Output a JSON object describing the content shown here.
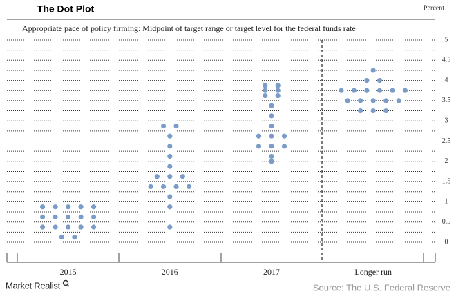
{
  "chart_data": {
    "type": "dot",
    "title": "The Dot Plot",
    "unit_label": "Percent",
    "subtitle": "Appropriate pace of policy firming: Midpoint of target range or target level for the federal funds rate",
    "categories": [
      "2015",
      "2016",
      "2017",
      "Longer run"
    ],
    "dots": [
      [
        0.875,
        0.875,
        0.875,
        0.875,
        0.875,
        0.625,
        0.625,
        0.625,
        0.625,
        0.625,
        0.375,
        0.375,
        0.375,
        0.375,
        0.375,
        0.125,
        0.125
      ],
      [
        2.875,
        2.875,
        2.625,
        2.375,
        2.125,
        1.875,
        1.625,
        1.625,
        1.625,
        1.375,
        1.375,
        1.375,
        1.375,
        1.125,
        0.875,
        0.375
      ],
      [
        3.875,
        3.875,
        3.75,
        3.75,
        3.625,
        3.625,
        3.375,
        3.125,
        2.875,
        2.625,
        2.625,
        2.625,
        2.375,
        2.375,
        2.375,
        2.125,
        2.0
      ],
      [
        4.25,
        4.0,
        4.0,
        3.75,
        3.75,
        3.75,
        3.75,
        3.75,
        3.75,
        3.5,
        3.5,
        3.5,
        3.5,
        3.5,
        3.25,
        3.25,
        3.25
      ]
    ],
    "color": "#7b9cc8",
    "ylim": [
      0,
      5
    ],
    "yticks": [
      0,
      0.5,
      1,
      1.5,
      2,
      2.5,
      3,
      3.5,
      4,
      4.5,
      5
    ],
    "minor_yticks": [
      0.25,
      0.75,
      1.25,
      1.75,
      2.25,
      2.75,
      3.25,
      3.75,
      4.25,
      4.75
    ],
    "grid": true,
    "brand": "Market Realist",
    "source": "Source: The U.S. Federal Reserve"
  }
}
